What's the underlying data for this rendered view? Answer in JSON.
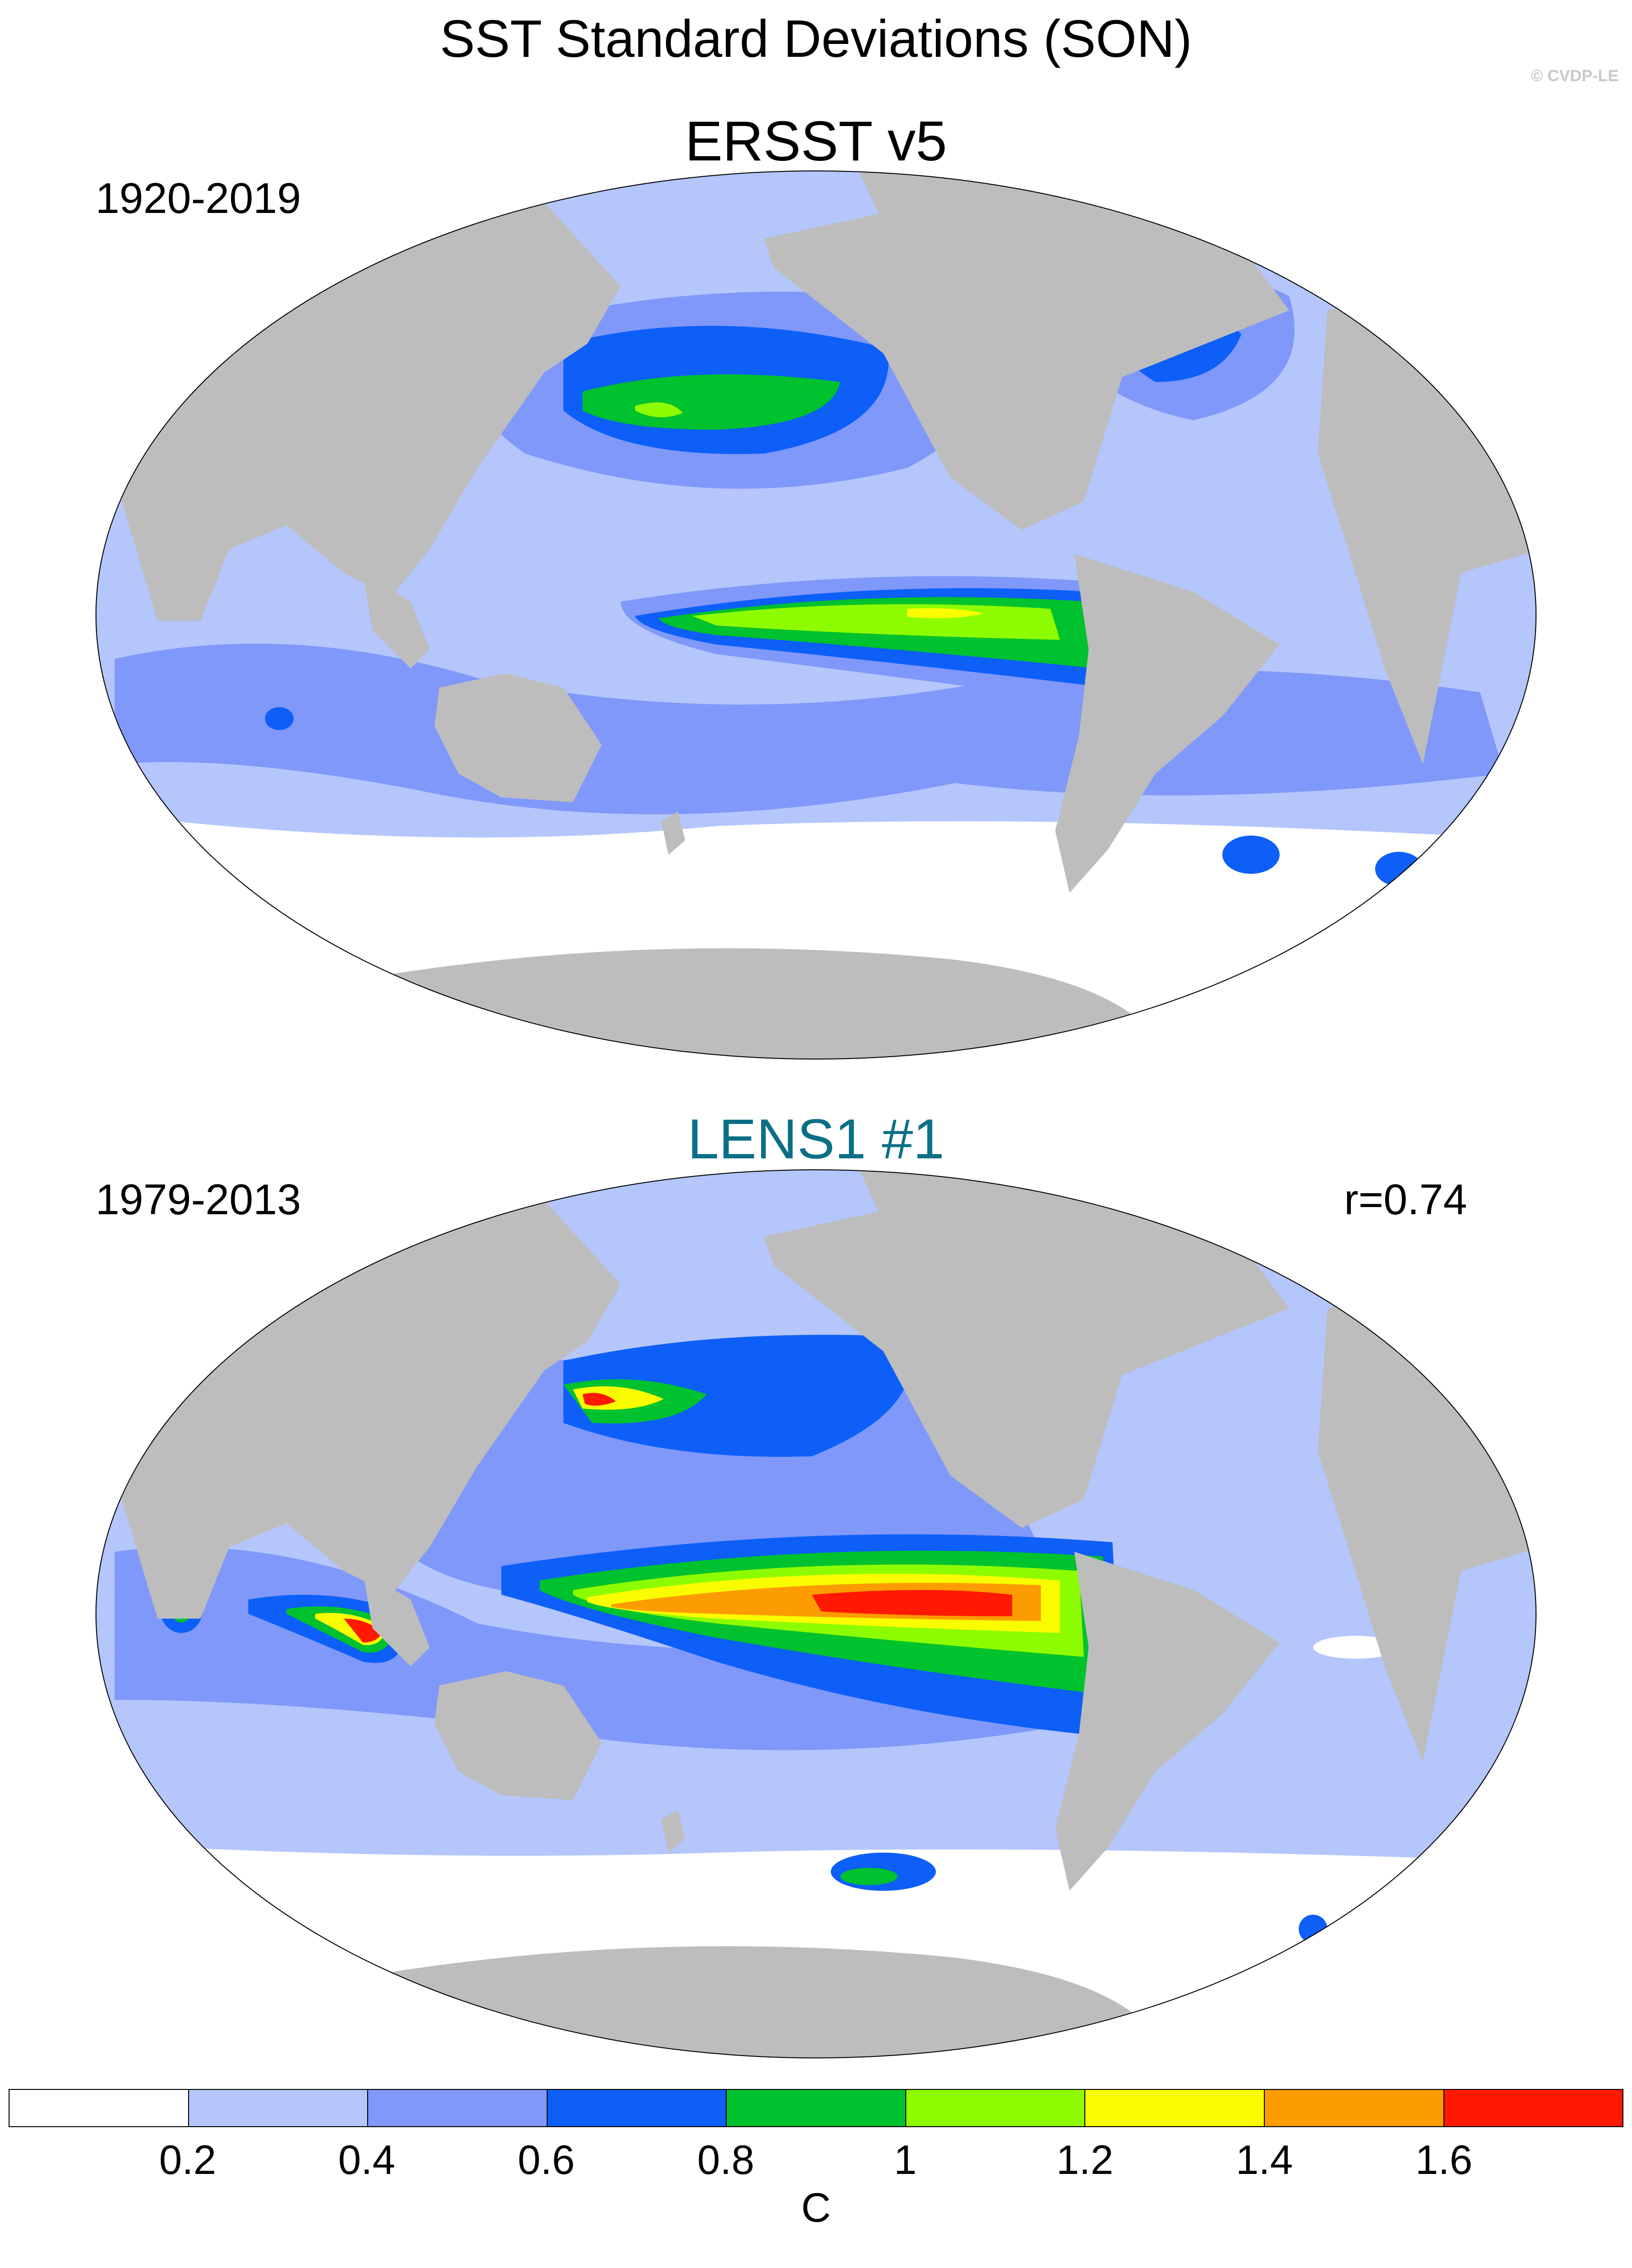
{
  "title": "SST Standard Deviations (SON)",
  "watermark": "© CVDP-LE",
  "panels": [
    {
      "title": "ERSST v5",
      "period": "1920-2019",
      "stat": ""
    },
    {
      "title": "LENS1 #1",
      "period": "1979-2013",
      "stat": "r=0.74"
    }
  ],
  "colorbar": {
    "unit": "C",
    "levels": [
      "0.2",
      "0.4",
      "0.6",
      "0.8",
      "1",
      "1.2",
      "1.4",
      "1.6"
    ],
    "colors": [
      "#ffffff",
      "#b4c6fb",
      "#7f98fa",
      "#0d5ff8",
      "#00c12e",
      "#8efc00",
      "#f9fd00",
      "#fc9c00",
      "#ff1900"
    ]
  },
  "colors": {
    "land": "#bdbdbd",
    "title2": "#0b6f86"
  }
}
